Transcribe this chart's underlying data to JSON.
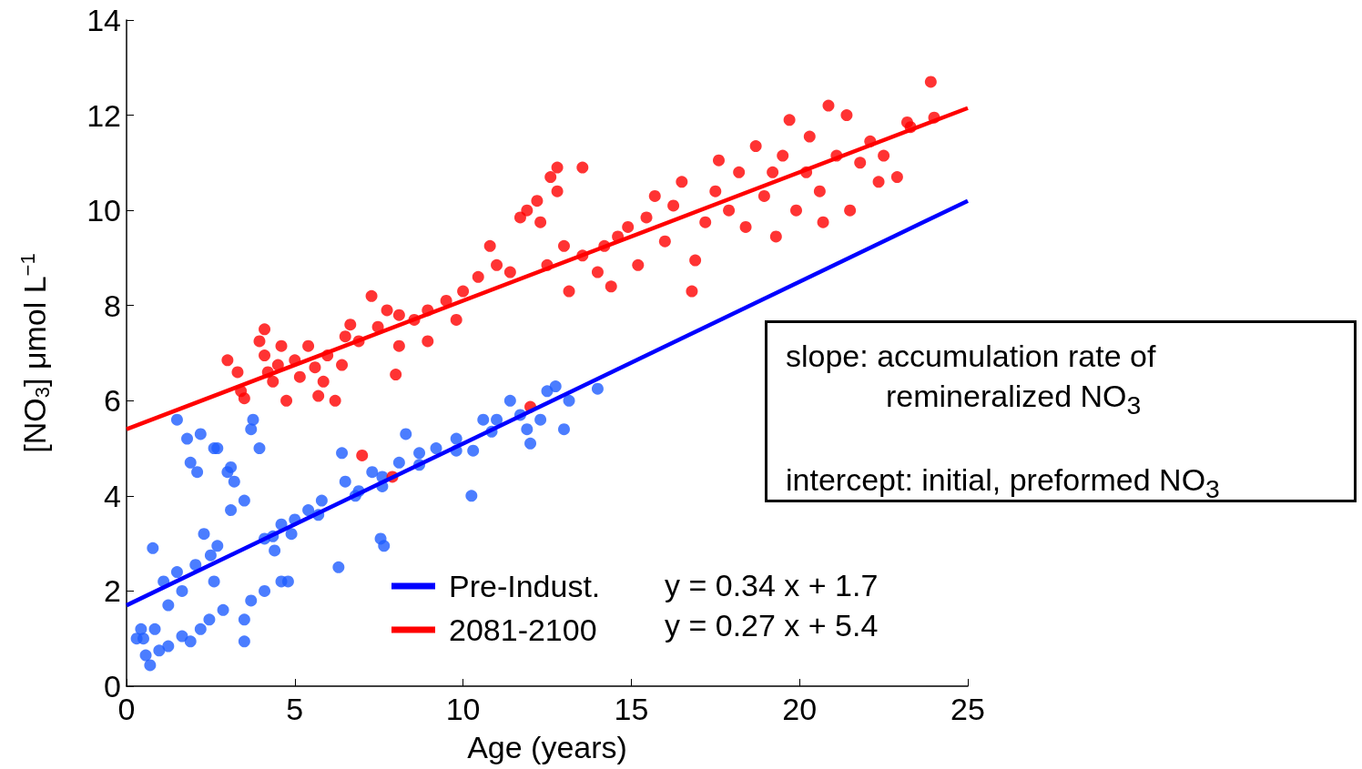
{
  "chart_data": {
    "type": "scatter",
    "xlabel": "Age (years)",
    "ylabel": "[NO$_{3}$] μmol L$^{−1}$",
    "xlim": [
      0,
      25
    ],
    "xticks": [
      0,
      5,
      10,
      15,
      20,
      25
    ],
    "ylim": [
      0,
      14
    ],
    "yticks": [
      0,
      2,
      4,
      6,
      8,
      10,
      12,
      14
    ],
    "grid": false,
    "legend": "bottom",
    "marker": "circle",
    "annotations": [
      "y = 0.34 x + 1.7",
      "y = 0.27 x + 5.4",
      "slope: accumulation rate of remineralized NO$_{3}$",
      "intercept: initial, preformed NO$_{3}$"
    ],
    "series": [
      {
        "color": "#1e5cff",
        "x": [
          0.7,
          0.57,
          0.5,
          0.84,
          0.78,
          0.97,
          1.24,
          1.5,
          1.8,
          1.9,
          2.1,
          2.2,
          2.6,
          2.7,
          3.0,
          3.1,
          3.7,
          3.76,
          3.95,
          3.5,
          3.2,
          3.1,
          3.5,
          3.5,
          3.7,
          4.1,
          4.6,
          4.8,
          4.4,
          4.1,
          4.6,
          5.0,
          5.4,
          5.8,
          6.3,
          6.4,
          6.5,
          6.9,
          7.3,
          7.6,
          7.55,
          7.65,
          8.1,
          8.3,
          8.7,
          9.2,
          9.8,
          10.25,
          10.3,
          10.6,
          11.0,
          11.4,
          11.7,
          11.9,
          12.0,
          12.5,
          12.75,
          13.0,
          13.15,
          14.0,
          2.5,
          1.65,
          1.24,
          1.5,
          2.2,
          2.6,
          2.3,
          2.05,
          1.1,
          2.7,
          4.35,
          7.6,
          8.7,
          9.8,
          10.85,
          12.3,
          0.3,
          0.43,
          1.65,
          1.9,
          2.46,
          2.87,
          5.7,
          4.9,
          6.8
        ],
        "values": [
          0.44,
          0.65,
          1.0,
          1.2,
          2.9,
          0.75,
          0.84,
          5.6,
          5.2,
          4.7,
          4.5,
          5.3,
          5.0,
          5.0,
          4.5,
          4.6,
          5.4,
          5.6,
          5.0,
          3.9,
          4.3,
          3.7,
          0.94,
          1.4,
          1.8,
          2.0,
          2.2,
          2.2,
          2.85,
          3.1,
          3.4,
          3.5,
          3.7,
          3.9,
          2.5,
          4.9,
          4.3,
          4.1,
          4.5,
          4.4,
          3.1,
          2.95,
          4.7,
          5.3,
          4.9,
          5.0,
          5.2,
          4.0,
          4.95,
          5.6,
          5.6,
          6.0,
          5.7,
          5.4,
          5.1,
          6.2,
          6.3,
          5.4,
          6.0,
          6.25,
          2.75,
          2.0,
          1.7,
          2.4,
          1.2,
          2.2,
          3.2,
          2.55,
          2.2,
          2.95,
          3.15,
          4.2,
          4.65,
          4.95,
          5.35,
          5.6,
          1.0,
          1.2,
          1.05,
          0.94,
          1.4,
          1.6,
          3.6,
          3.2,
          4.0
        ]
      },
      {
        "color": "#ff0000",
        "x": [
          7.0,
          7.9,
          12.0,
          3.0,
          3.3,
          3.4,
          3.5,
          3.95,
          4.1,
          4.2,
          4.35,
          4.6,
          4.75,
          5.0,
          5.15,
          5.6,
          5.7,
          5.97,
          6.2,
          6.4,
          6.5,
          6.9,
          7.28,
          7.47,
          7.74,
          8.0,
          8.1,
          8.55,
          8.95,
          9.5,
          10.0,
          10.45,
          10.8,
          11.0,
          11.4,
          11.7,
          11.9,
          12.2,
          12.3,
          12.6,
          12.8,
          12.8,
          13.55,
          12.5,
          13.0,
          13.15,
          13.55,
          14.0,
          14.2,
          14.4,
          14.6,
          14.9,
          15.2,
          15.45,
          15.7,
          16.0,
          16.25,
          16.5,
          16.8,
          16.9,
          17.2,
          17.5,
          17.6,
          17.9,
          18.2,
          18.4,
          18.7,
          18.95,
          19.2,
          19.3,
          19.5,
          19.7,
          19.9,
          20.2,
          20.3,
          20.6,
          20.7,
          20.86,
          21.1,
          21.4,
          21.5,
          21.8,
          22.1,
          22.35,
          22.5,
          22.9,
          23.2,
          23.3,
          23.9,
          24.0,
          4.1,
          4.5,
          5.4,
          5.85,
          6.65,
          8.1,
          8.95,
          9.8
        ],
        "values": [
          4.85,
          4.4,
          5.87,
          6.85,
          6.6,
          6.2,
          6.05,
          7.25,
          6.95,
          6.6,
          6.4,
          7.15,
          6.0,
          6.85,
          6.5,
          6.7,
          6.1,
          6.95,
          6.0,
          6.75,
          7.35,
          7.25,
          8.2,
          7.55,
          7.9,
          6.55,
          7.15,
          7.7,
          7.9,
          8.1,
          8.3,
          8.6,
          9.25,
          8.85,
          8.7,
          9.85,
          10.0,
          10.2,
          9.75,
          10.7,
          10.9,
          10.4,
          10.9,
          8.85,
          9.25,
          8.3,
          9.05,
          8.7,
          9.25,
          8.4,
          9.45,
          9.65,
          8.85,
          9.85,
          10.3,
          9.35,
          10.1,
          10.6,
          8.3,
          8.95,
          9.75,
          10.4,
          11.05,
          10.0,
          10.8,
          9.65,
          11.35,
          10.3,
          10.8,
          9.45,
          11.15,
          11.9,
          10.0,
          10.8,
          11.55,
          10.4,
          9.75,
          12.2,
          11.15,
          12.0,
          10.0,
          11.0,
          11.45,
          10.6,
          11.15,
          10.7,
          11.85,
          11.75,
          12.7,
          11.95,
          7.5,
          6.75,
          7.15,
          6.4,
          7.6,
          7.8,
          7.25,
          7.7
        ]
      },
      {
        "type": "line",
        "name": "Pre-Indust.",
        "color": "#0000ff",
        "marker": "none",
        "x": [
          0,
          25
        ],
        "values": [
          1.7,
          10.2
        ]
      },
      {
        "type": "line",
        "name": "2081-2100",
        "color": "#ff0000",
        "marker": "none",
        "x": [
          0,
          25
        ],
        "values": [
          5.4,
          12.15
        ]
      }
    ]
  }
}
